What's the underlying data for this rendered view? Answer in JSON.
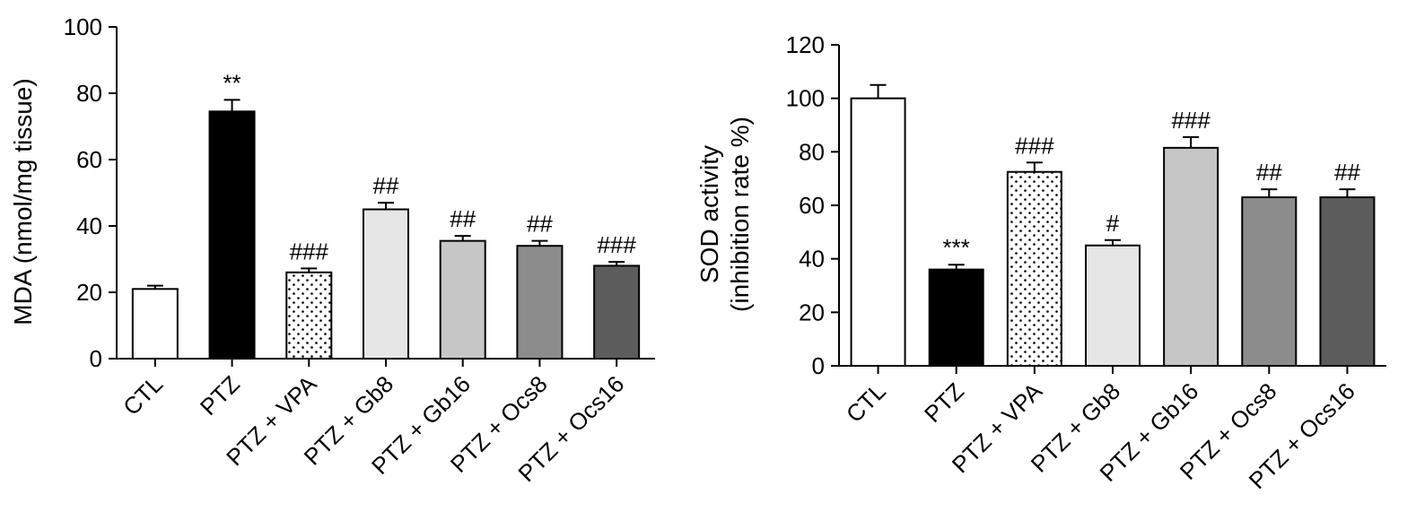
{
  "chart_data": [
    {
      "type": "bar",
      "title": "",
      "xlabel": "",
      "ylabel_lines": [
        "MDA (nmol/mg tissue)"
      ],
      "ylim": [
        0,
        100
      ],
      "yticks": [
        0,
        20,
        40,
        60,
        80,
        100
      ],
      "categories": [
        "CTL",
        "PTZ",
        "PTZ + VPA",
        "PTZ + Gb8",
        "PTZ + Gb16",
        "PTZ + Ocs8",
        "PTZ + Ocs16"
      ],
      "values": [
        21,
        74.5,
        26,
        45,
        35.5,
        34,
        28
      ],
      "errors": [
        1,
        3.5,
        1.2,
        2,
        1.5,
        1.5,
        1.2
      ],
      "significance": [
        "",
        "**",
        "###",
        "##",
        "##",
        "##",
        "###"
      ],
      "fills": [
        "#ffffff",
        "#000000",
        "dots",
        "#e6e6e6",
        "#c6c6c6",
        "#8c8c8c",
        "#5c5c5c"
      ]
    },
    {
      "type": "bar",
      "title": "",
      "xlabel": "",
      "ylabel_lines": [
        "SOD activity",
        "(inhibition rate %)"
      ],
      "ylim": [
        0,
        120
      ],
      "yticks": [
        0,
        20,
        40,
        60,
        80,
        100,
        120
      ],
      "categories": [
        "CTL",
        "PTZ",
        "PTZ + VPA",
        "PTZ + Gb8",
        "PTZ + Gb16",
        "PTZ + Ocs8",
        "PTZ + Ocs16"
      ],
      "values": [
        100,
        36,
        72.5,
        45,
        81.5,
        63,
        63
      ],
      "errors": [
        5,
        1.8,
        3.5,
        2,
        4,
        3,
        3
      ],
      "significance": [
        "",
        "***",
        "###",
        "#",
        "###",
        "##",
        "##"
      ],
      "fills": [
        "#ffffff",
        "#000000",
        "dots",
        "#e6e6e6",
        "#c6c6c6",
        "#8c8c8c",
        "#5c5c5c"
      ]
    }
  ]
}
